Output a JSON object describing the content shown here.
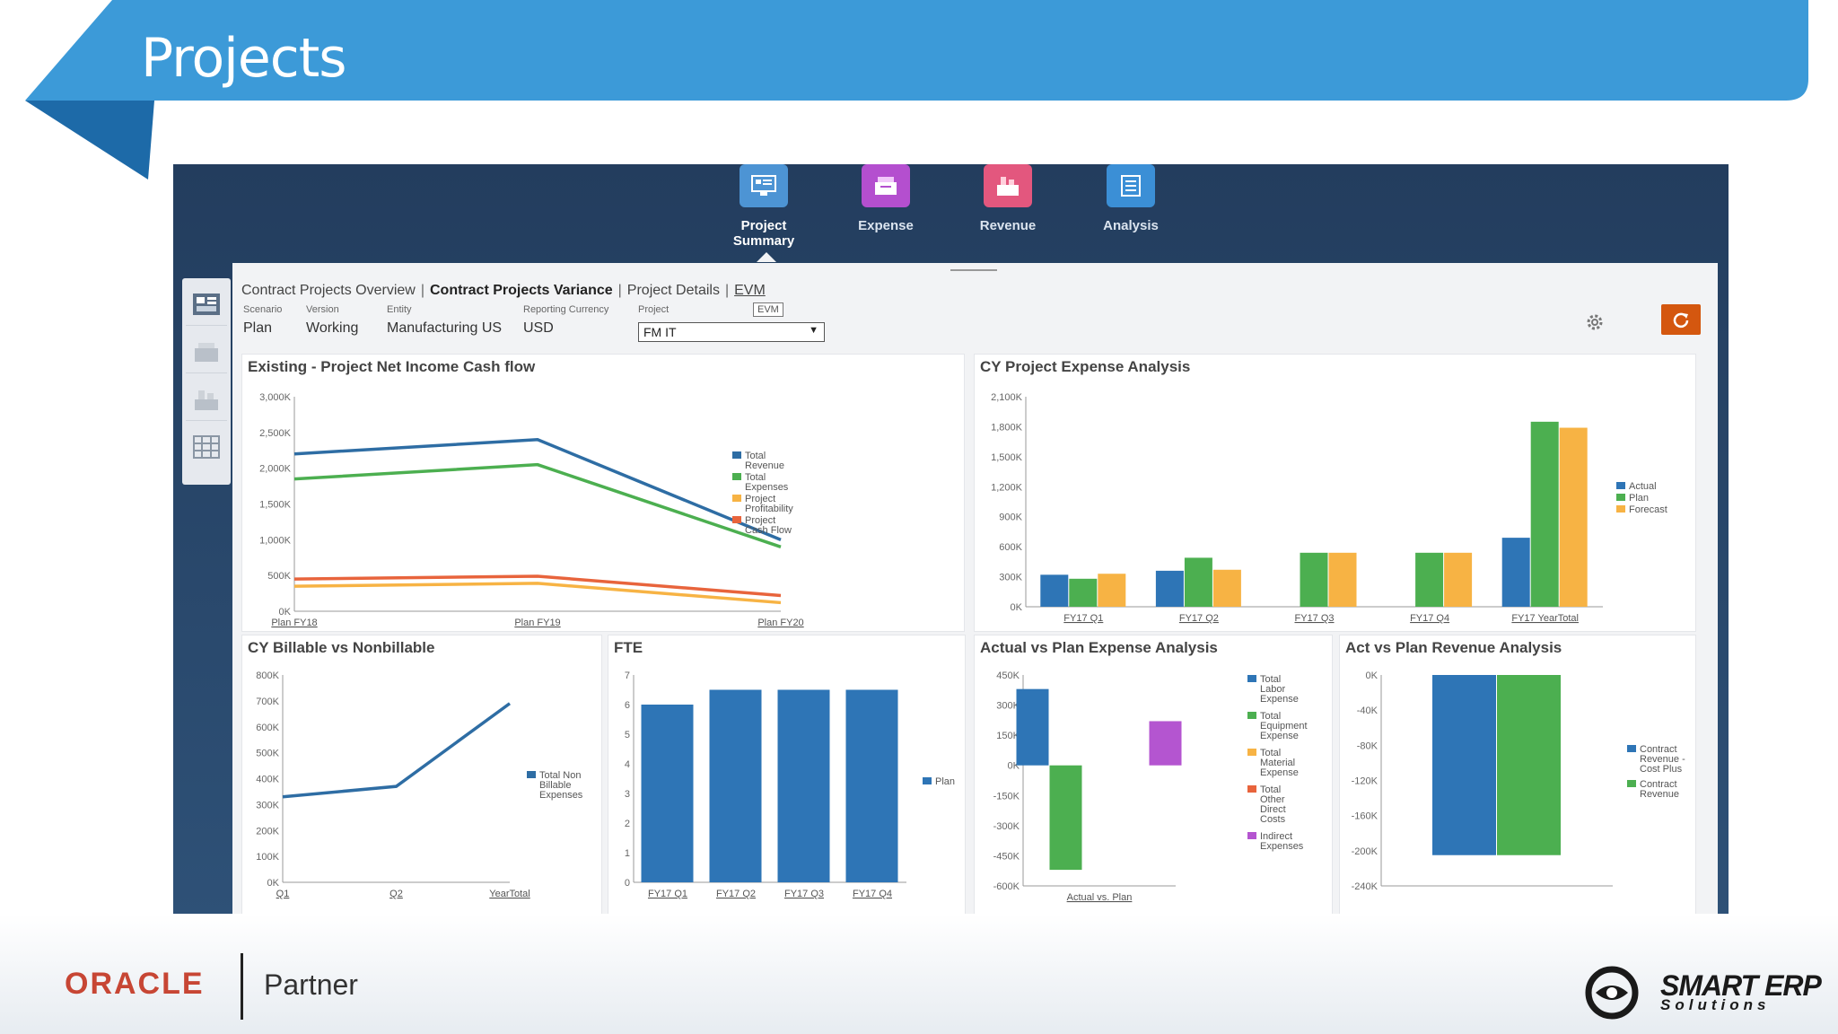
{
  "slide": {
    "title": "Projects",
    "colors": {
      "banner": "#3a9ad9",
      "banner_dark": "#1f6fb0"
    }
  },
  "footer": {
    "oracle": "ORACLE",
    "partner": "Partner",
    "smart_erp": "SMART ERP",
    "solutions": "Solutions"
  },
  "topnav": [
    {
      "label": "Project Summary",
      "icon": "monitor-icon",
      "color": "#4d94d4",
      "active": true
    },
    {
      "label": "Expense",
      "icon": "expense-icon",
      "color": "#b44fcf",
      "active": false
    },
    {
      "label": "Revenue",
      "icon": "revenue-icon",
      "color": "#e3577e",
      "active": false
    },
    {
      "label": "Analysis",
      "icon": "table-icon",
      "color": "#3b8fd6",
      "active": false
    }
  ],
  "sidebar": [
    {
      "icon": "dashboard-icon"
    },
    {
      "icon": "expense-icon"
    },
    {
      "icon": "revenue-icon"
    },
    {
      "icon": "grid-icon"
    }
  ],
  "breadcrumbs": {
    "items": [
      "Contract Projects Overview",
      "Contract Projects Variance",
      "Project Details",
      "EVM"
    ],
    "active": "Contract Projects Variance"
  },
  "pov": {
    "scenario": {
      "label": "Scenario",
      "value": "Plan"
    },
    "version": {
      "label": "Version",
      "value": "Working"
    },
    "entity": {
      "label": "Entity",
      "value": "Manufacturing US"
    },
    "currency": {
      "label": "Reporting Currency",
      "value": "USD"
    },
    "project": {
      "label": "Project",
      "value": "FM IT"
    },
    "tooltip": "EVM"
  },
  "colors": {
    "actual": "#2e75b6",
    "plan": "#4caf50",
    "forecast": "#f7b344",
    "profit": "#f2a14a",
    "cash": "#e8643c",
    "indirect": "#b455d0"
  },
  "chart_data": [
    {
      "id": "net-income",
      "type": "line",
      "title": "Existing - Project Net Income Cash flow",
      "categories": [
        "Plan FY18",
        "Plan FY19",
        "Plan FY20"
      ],
      "y_ticks": [
        "0K",
        "500K",
        "1,000K",
        "1,500K",
        "2,000K",
        "2,500K",
        "3,000K"
      ],
      "ylim": [
        0,
        3000
      ],
      "series": [
        {
          "name": "Total Revenue",
          "values": [
            2200,
            2400,
            1000
          ],
          "color": "#2e6da4"
        },
        {
          "name": "Total Expenses",
          "values": [
            1850,
            2050,
            900
          ],
          "color": "#4caf50"
        },
        {
          "name": "Project Profitability",
          "values": [
            350,
            390,
            120
          ],
          "color": "#f7b344"
        },
        {
          "name": "Project Cash Flow",
          "values": [
            450,
            490,
            220
          ],
          "color": "#e8643c"
        }
      ]
    },
    {
      "id": "expense-analysis",
      "type": "bar",
      "title": "CY Project Expense Analysis",
      "categories": [
        "FY17 Q1",
        "FY17 Q2",
        "FY17 Q3",
        "FY17 Q4",
        "FY17 YearTotal"
      ],
      "y_ticks": [
        "0K",
        "300K",
        "600K",
        "900K",
        "1,200K",
        "1,500K",
        "1,800K",
        "2,100K"
      ],
      "ylim": [
        0,
        2100
      ],
      "series": [
        {
          "name": "Actual",
          "values": [
            320,
            360,
            0,
            0,
            690
          ],
          "color": "#2e75b6"
        },
        {
          "name": "Plan",
          "values": [
            280,
            490,
            540,
            540,
            1850
          ],
          "color": "#4caf50"
        },
        {
          "name": "Forecast",
          "values": [
            330,
            370,
            540,
            540,
            1790
          ],
          "color": "#f7b344"
        }
      ]
    },
    {
      "id": "billable",
      "type": "line",
      "title": "CY Billable vs Nonbillable",
      "categories": [
        "Q1",
        "Q2",
        "YearTotal"
      ],
      "y_ticks": [
        "0K",
        "100K",
        "200K",
        "300K",
        "400K",
        "500K",
        "600K",
        "700K",
        "800K"
      ],
      "ylim": [
        0,
        800
      ],
      "series": [
        {
          "name": "Total Non Billable Expenses",
          "values": [
            330,
            370,
            690
          ],
          "color": "#2e6da4"
        }
      ]
    },
    {
      "id": "fte",
      "type": "bar",
      "title": "FTE",
      "categories": [
        "FY17 Q1",
        "FY17 Q2",
        "FY17 Q3",
        "FY17 Q4"
      ],
      "y_ticks": [
        "0",
        "1",
        "2",
        "3",
        "4",
        "5",
        "6",
        "7"
      ],
      "ylim": [
        0,
        7
      ],
      "series": [
        {
          "name": "Plan",
          "values": [
            6.0,
            6.5,
            6.5,
            6.5
          ],
          "color": "#2e75b6"
        }
      ]
    },
    {
      "id": "actual-vs-plan-expense",
      "type": "bar",
      "title": "Actual vs Plan Expense Analysis",
      "categories": [
        "Actual vs. Plan"
      ],
      "y_ticks": [
        "-600K",
        "-450K",
        "-300K",
        "-150K",
        "0K",
        "150K",
        "300K",
        "450K"
      ],
      "ylim": [
        -600,
        450
      ],
      "series": [
        {
          "name": "Total Labor Expense",
          "values": [
            380
          ],
          "color": "#2e75b6"
        },
        {
          "name": "Total Equipment Expense",
          "values": [
            -520
          ],
          "color": "#4caf50"
        },
        {
          "name": "Total Material Expense",
          "values": [
            0
          ],
          "color": "#f7b344"
        },
        {
          "name": "Total Other Direct Costs",
          "values": [
            0
          ],
          "color": "#e8643c"
        },
        {
          "name": "Indirect Expenses",
          "values": [
            220
          ],
          "color": "#b455d0"
        }
      ]
    },
    {
      "id": "revenue-analysis",
      "type": "bar",
      "title": "Act vs Plan Revenue Analysis",
      "categories": [
        ""
      ],
      "y_ticks": [
        "-240K",
        "-200K",
        "-160K",
        "-120K",
        "-80K",
        "-40K",
        "0K"
      ],
      "ylim": [
        -240,
        0
      ],
      "series": [
        {
          "name": "Contract Revenue - Cost Plus",
          "values": [
            -205
          ],
          "color": "#2e75b6"
        },
        {
          "name": "Contract Revenue",
          "values": [
            -205
          ],
          "color": "#4caf50"
        }
      ]
    }
  ]
}
